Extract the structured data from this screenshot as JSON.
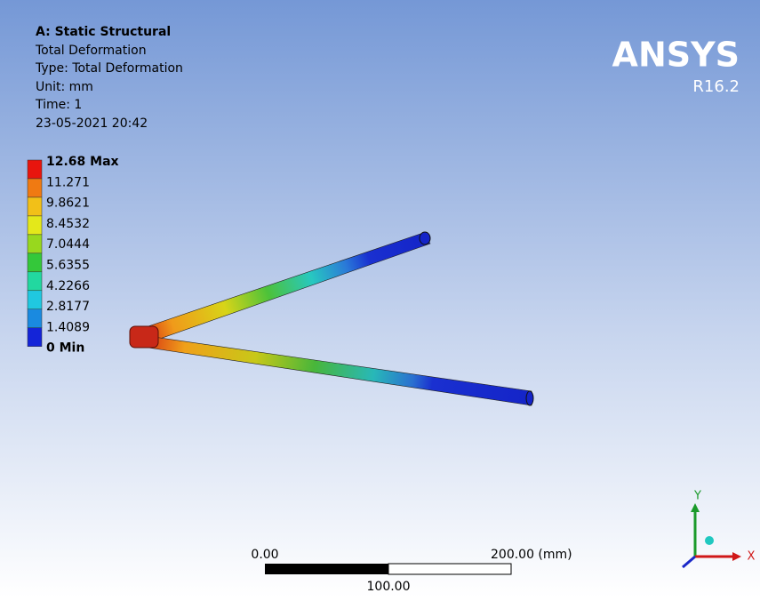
{
  "header": {
    "title": "A: Static Structural",
    "lines": [
      "Total Deformation",
      "Type: Total Deformation",
      "Unit: mm",
      "Time: 1",
      "23-05-2021 20:42"
    ]
  },
  "legend": {
    "entries": [
      "12.68 Max",
      "11.271",
      "9.8621",
      "8.4532",
      "7.0444",
      "5.6355",
      "4.2266",
      "2.8177",
      "1.4089",
      "0 Min"
    ]
  },
  "logo": {
    "name": "ANSYS",
    "version": "R16.2"
  },
  "scale_bar": {
    "start": "0.00",
    "end": "200.00 (mm)",
    "middle": "100.00"
  },
  "triad": {
    "x": "X",
    "y": "Y"
  }
}
